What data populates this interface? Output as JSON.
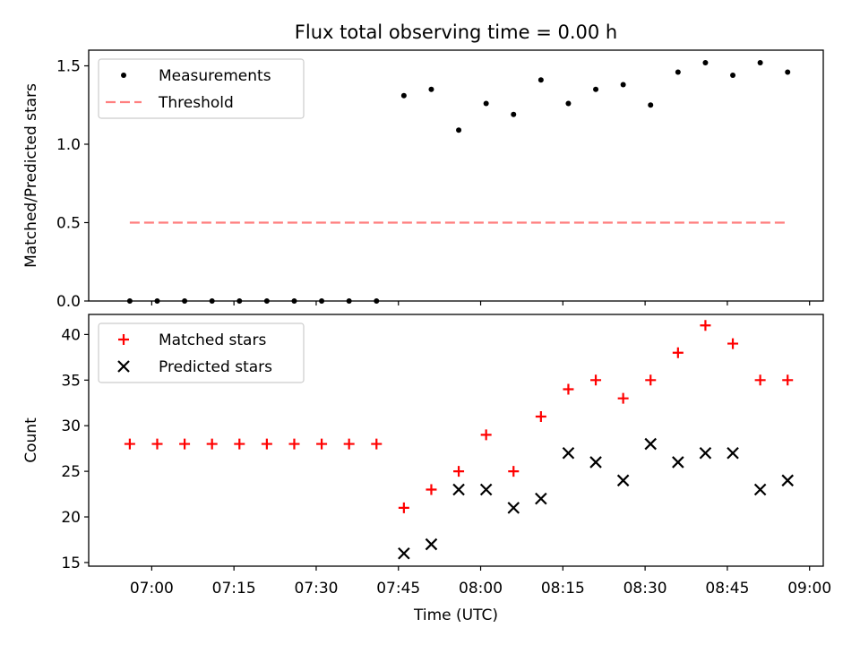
{
  "chart_data": [
    {
      "type": "scatter",
      "title": "Flux total observing time = 0.00 h",
      "xlabel": "",
      "ylabel": "Matched/Predicted stars",
      "ylim": [
        0,
        1.6
      ],
      "yticks": [
        "0.0",
        "0.5",
        "1.0",
        "1.5"
      ],
      "legend": {
        "position": "top-left",
        "entries": [
          "Measurements",
          "Threshold"
        ]
      },
      "series": [
        {
          "name": "Measurements",
          "marker": "dot",
          "color": "#000000",
          "x": [
            "06:56",
            "07:01",
            "07:06",
            "07:11",
            "07:16",
            "07:21",
            "07:26",
            "07:31",
            "07:36",
            "07:41",
            "07:46",
            "07:51",
            "07:56",
            "08:01",
            "08:06",
            "08:11",
            "08:16",
            "08:21",
            "08:26",
            "08:31",
            "08:36",
            "08:41",
            "08:46",
            "08:51",
            "08:56"
          ],
          "y": [
            0.0,
            0.0,
            0.0,
            0.0,
            0.0,
            0.0,
            0.0,
            0.0,
            0.0,
            0.0,
            1.31,
            1.35,
            1.09,
            1.26,
            1.19,
            1.41,
            1.26,
            1.35,
            1.38,
            1.25,
            1.46,
            1.52,
            1.44,
            1.52,
            1.46
          ]
        },
        {
          "name": "Threshold",
          "line": "dashed",
          "color": "#ff7f7f",
          "x": [
            "06:56",
            "08:56"
          ],
          "y": [
            0.5,
            0.5
          ]
        }
      ]
    },
    {
      "type": "scatter",
      "title": "",
      "xlabel": "Time (UTC)",
      "ylabel": "Count",
      "ylim": [
        14.6,
        42.2
      ],
      "yticks": [
        "15",
        "20",
        "25",
        "30",
        "35",
        "40"
      ],
      "xticks": [
        "07:00",
        "07:15",
        "07:30",
        "07:45",
        "08:00",
        "08:15",
        "08:30",
        "08:45",
        "09:00"
      ],
      "legend": {
        "position": "top-left",
        "entries": [
          "Matched stars",
          "Predicted stars"
        ]
      },
      "series": [
        {
          "name": "Matched stars",
          "marker": "plus",
          "color": "#ff0000",
          "x": [
            "06:56",
            "07:01",
            "07:06",
            "07:11",
            "07:16",
            "07:21",
            "07:26",
            "07:31",
            "07:36",
            "07:41",
            "07:46",
            "07:51",
            "07:56",
            "08:01",
            "08:06",
            "08:11",
            "08:16",
            "08:21",
            "08:26",
            "08:31",
            "08:36",
            "08:41",
            "08:46",
            "08:51",
            "08:56"
          ],
          "y": [
            28,
            28,
            28,
            28,
            28,
            28,
            28,
            28,
            28,
            28,
            21,
            23,
            25,
            29,
            25,
            31,
            34,
            35,
            33,
            35,
            38,
            41,
            39,
            35,
            35
          ]
        },
        {
          "name": "Predicted stars",
          "marker": "x",
          "color": "#000000",
          "x": [
            "07:46",
            "07:51",
            "07:56",
            "08:01",
            "08:06",
            "08:11",
            "08:16",
            "08:21",
            "08:26",
            "08:31",
            "08:36",
            "08:41",
            "08:46",
            "08:51",
            "08:56"
          ],
          "y": [
            16,
            17,
            23,
            23,
            21,
            22,
            27,
            26,
            24,
            28,
            26,
            27,
            27,
            23,
            24
          ]
        }
      ]
    }
  ]
}
